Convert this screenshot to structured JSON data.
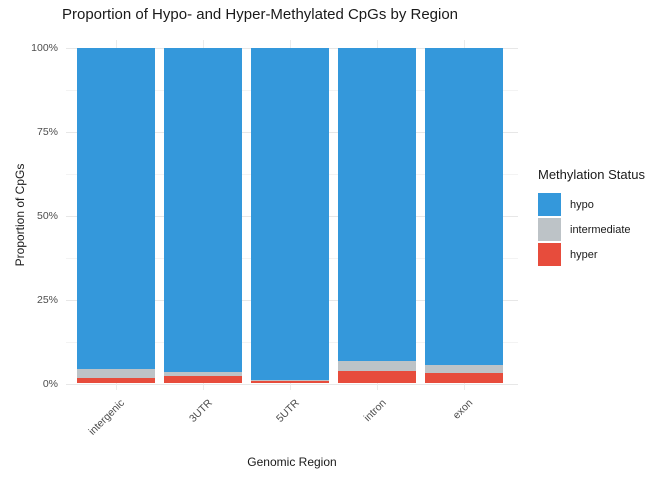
{
  "chart_data": {
    "type": "bar",
    "stacked": true,
    "percent": true,
    "title": "Proportion of Hypo- and Hyper-Methylated CpGs by Region",
    "xlabel": "Genomic Region",
    "ylabel": "Proportion of CpGs",
    "categories": [
      "intergenic",
      "3UTR",
      "5UTR",
      "intron",
      "exon"
    ],
    "series": [
      {
        "name": "hypo",
        "color": "#3498DB",
        "values": [
          95.7,
          96.6,
          99.1,
          93.3,
          94.5
        ]
      },
      {
        "name": "intermediate",
        "color": "#BDC3C7",
        "values": [
          2.7,
          1.2,
          0.3,
          3.0,
          2.4
        ]
      },
      {
        "name": "hyper",
        "color": "#E74C3C",
        "values": [
          1.6,
          2.2,
          0.6,
          3.7,
          3.1
        ]
      }
    ],
    "ylim": [
      0,
      100
    ],
    "y_ticks": [
      {
        "value": 0,
        "label": "0%"
      },
      {
        "value": 25,
        "label": "25%"
      },
      {
        "value": 50,
        "label": "50%"
      },
      {
        "value": 75,
        "label": "75%"
      },
      {
        "value": 100,
        "label": "100%"
      }
    ],
    "y_minor_ticks": [
      12.5,
      37.5,
      62.5,
      87.5
    ],
    "grid": true,
    "legend_title": "Methylation Status",
    "legend_position": "right",
    "background_color": "#ffffff",
    "gridline_color": "#ebebeb"
  }
}
